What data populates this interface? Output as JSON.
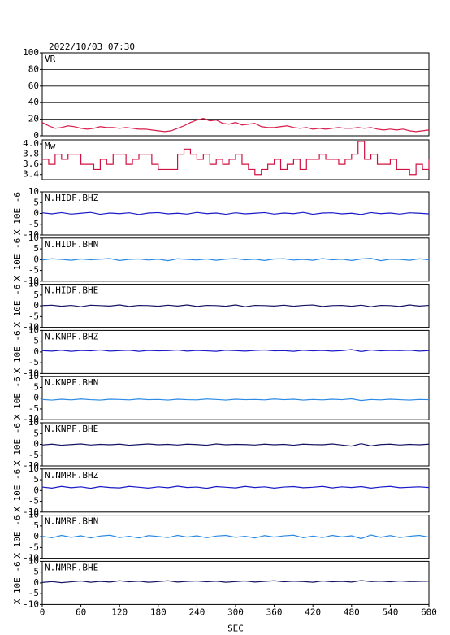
{
  "chart_data": [
    {
      "type": "line",
      "title": "2022/10/03 07:30",
      "label": "VR",
      "color": "#d81b4a",
      "grid": true,
      "x": [
        0,
        10,
        20,
        30,
        40,
        50,
        60,
        70,
        80,
        90,
        100,
        110,
        120,
        130,
        140,
        150,
        160,
        170,
        180,
        190,
        200,
        210,
        220,
        230,
        240,
        250,
        260,
        270,
        280,
        290,
        300,
        310,
        320,
        330,
        340,
        350,
        360,
        370,
        380,
        390,
        400,
        410,
        420,
        430,
        440,
        450,
        460,
        470,
        480,
        490,
        500,
        510,
        520,
        530,
        540,
        550,
        560,
        570,
        580,
        590,
        600
      ],
      "values": [
        16,
        12,
        9,
        10,
        12,
        11,
        9,
        8,
        9,
        11,
        10,
        10,
        9,
        10,
        9,
        8,
        8,
        7,
        6,
        5,
        6,
        9,
        12,
        16,
        19,
        21,
        18,
        19,
        15,
        14,
        16,
        13,
        14,
        15,
        11,
        10,
        10,
        11,
        12,
        10,
        9,
        10,
        8,
        9,
        8,
        9,
        10,
        9,
        9,
        10,
        9,
        10,
        8,
        7,
        8,
        7,
        8,
        6,
        5,
        6,
        7
      ],
      "xlim": [
        0,
        600
      ],
      "ylim": [
        0,
        100
      ],
      "yticks": [
        0,
        20,
        40,
        60,
        80,
        100
      ]
    },
    {
      "type": "step",
      "label": "Mw",
      "color": "#d01040",
      "x": [
        0,
        10,
        20,
        30,
        40,
        50,
        60,
        70,
        80,
        90,
        100,
        110,
        120,
        130,
        140,
        150,
        160,
        170,
        180,
        190,
        200,
        210,
        220,
        230,
        240,
        250,
        260,
        270,
        280,
        290,
        300,
        310,
        320,
        330,
        340,
        350,
        360,
        370,
        380,
        390,
        400,
        410,
        420,
        430,
        440,
        450,
        460,
        470,
        480,
        490,
        500,
        510,
        520,
        530,
        540,
        550,
        560,
        570,
        580,
        590,
        600
      ],
      "values": [
        3.7,
        3.6,
        3.8,
        3.7,
        3.8,
        3.8,
        3.6,
        3.6,
        3.5,
        3.7,
        3.6,
        3.8,
        3.8,
        3.6,
        3.7,
        3.8,
        3.8,
        3.6,
        3.5,
        3.5,
        3.5,
        3.8,
        3.9,
        3.8,
        3.7,
        3.8,
        3.6,
        3.7,
        3.6,
        3.7,
        3.8,
        3.6,
        3.5,
        3.4,
        3.5,
        3.6,
        3.7,
        3.5,
        3.6,
        3.7,
        3.5,
        3.7,
        3.7,
        3.8,
        3.7,
        3.7,
        3.6,
        3.7,
        3.8,
        4.05,
        3.7,
        3.8,
        3.6,
        3.6,
        3.7,
        3.5,
        3.5,
        3.4,
        3.6,
        3.5,
        3.7
      ],
      "xlim": [
        0,
        600
      ],
      "ylim": [
        3.3,
        4.08
      ],
      "yticks": [
        3.4,
        3.6,
        3.8,
        {
          "value": 4,
          "label": "4.0"
        }
      ]
    },
    {
      "type": "line",
      "label": "N.HIDF.BHZ",
      "ylabel": "X 10E -6",
      "color": "#1a1ac8",
      "x": [
        0,
        15,
        30,
        45,
        60,
        75,
        90,
        105,
        120,
        135,
        150,
        165,
        180,
        195,
        210,
        225,
        240,
        255,
        270,
        285,
        300,
        315,
        330,
        345,
        360,
        375,
        390,
        405,
        420,
        435,
        450,
        465,
        480,
        495,
        510,
        525,
        540,
        555,
        570,
        585,
        600
      ],
      "values": [
        0.3,
        -0.2,
        0.4,
        -0.3,
        0.1,
        0.5,
        -0.4,
        0.2,
        -0.1,
        0.3,
        -0.5,
        0.2,
        0.4,
        -0.2,
        0.1,
        -0.3,
        0.5,
        -0.1,
        0.2,
        -0.4,
        0.3,
        -0.2,
        0.1,
        0.4,
        -0.3,
        0.2,
        -0.1,
        0.5,
        -0.4,
        0.2,
        0.3,
        -0.2,
        0.1,
        -0.5,
        0.4,
        -0.1,
        0.2,
        -0.3,
        0.3,
        0.1,
        -0.2
      ],
      "xlim": [
        0,
        600
      ],
      "ylim": [
        -10,
        10
      ],
      "yticks": [
        -10,
        -5,
        0,
        5,
        10
      ]
    },
    {
      "type": "line",
      "label": "N.HIDF.BHN",
      "ylabel": "X 10E -6",
      "color": "#2a8ae6",
      "x": [
        0,
        15,
        30,
        45,
        60,
        75,
        90,
        105,
        120,
        135,
        150,
        165,
        180,
        195,
        210,
        225,
        240,
        255,
        270,
        285,
        300,
        315,
        330,
        345,
        360,
        375,
        390,
        405,
        420,
        435,
        450,
        465,
        480,
        495,
        510,
        525,
        540,
        555,
        570,
        585,
        600
      ],
      "values": [
        -0.2,
        0.4,
        0.1,
        -0.3,
        0.3,
        -0.1,
        0.2,
        0.5,
        -0.4,
        0.1,
        0.3,
        -0.2,
        0.2,
        -0.5,
        0.4,
        0.1,
        -0.2,
        0.3,
        -0.3,
        0.2,
        0.5,
        -0.1,
        0.2,
        -0.4,
        0.3,
        0.4,
        -0.2,
        0.1,
        -0.3,
        0.5,
        -0.1,
        0.2,
        -0.4,
        0.3,
        0.6,
        -0.5,
        0.2,
        0.1,
        -0.3,
        0.4,
        -0.1
      ],
      "xlim": [
        0,
        600
      ],
      "ylim": [
        -10,
        10
      ],
      "yticks": [
        -10,
        -5,
        0,
        5,
        10
      ]
    },
    {
      "type": "line",
      "label": "N.HIDF.BHE",
      "ylabel": "X 10E -6",
      "color": "#141464",
      "x": [
        0,
        15,
        30,
        45,
        60,
        75,
        90,
        105,
        120,
        135,
        150,
        165,
        180,
        195,
        210,
        225,
        240,
        255,
        270,
        285,
        300,
        315,
        330,
        345,
        360,
        375,
        390,
        405,
        420,
        435,
        450,
        465,
        480,
        495,
        510,
        525,
        540,
        555,
        570,
        585,
        600
      ],
      "values": [
        0.1,
        0.3,
        -0.2,
        0.2,
        -0.4,
        0.3,
        0.1,
        -0.1,
        0.4,
        -0.3,
        0.2,
        0.1,
        -0.2,
        0.3,
        -0.1,
        0.4,
        -0.3,
        0.2,
        0.1,
        -0.2,
        0.4,
        -0.4,
        0.2,
        0.1,
        -0.1,
        0.3,
        -0.2,
        0.2,
        0.4,
        -0.3,
        0.1,
        0.2,
        -0.2,
        0.3,
        -0.4,
        0.2,
        0.1,
        -0.3,
        0.4,
        -0.1,
        0.2
      ],
      "xlim": [
        0,
        600
      ],
      "ylim": [
        -10,
        10
      ],
      "yticks": [
        -10,
        -5,
        0,
        5,
        10
      ]
    },
    {
      "type": "line",
      "label": "N.KNPF.BHZ",
      "ylabel": "X 10E -6",
      "color": "#1a1ac8",
      "x": [
        0,
        15,
        30,
        45,
        60,
        75,
        90,
        105,
        120,
        135,
        150,
        165,
        180,
        195,
        210,
        225,
        240,
        255,
        270,
        285,
        300,
        315,
        330,
        345,
        360,
        375,
        390,
        405,
        420,
        435,
        450,
        465,
        480,
        495,
        510,
        525,
        540,
        555,
        570,
        585,
        600
      ],
      "values": [
        0.6,
        0.4,
        0.8,
        0.3,
        0.7,
        0.5,
        0.9,
        0.4,
        0.6,
        0.8,
        0.3,
        0.7,
        0.5,
        0.6,
        0.9,
        0.4,
        0.7,
        0.5,
        0.3,
        0.8,
        0.6,
        0.4,
        0.7,
        0.9,
        0.5,
        0.6,
        0.3,
        0.8,
        0.5,
        0.7,
        0.4,
        0.6,
        1.1,
        0.2,
        0.9,
        0.5,
        0.7,
        0.6,
        0.8,
        0.4,
        0.6
      ],
      "xlim": [
        0,
        600
      ],
      "ylim": [
        -10,
        10
      ],
      "yticks": [
        -10,
        -5,
        0,
        5,
        10
      ]
    },
    {
      "type": "line",
      "label": "N.KNPF.BHN",
      "ylabel": "X 10E -6",
      "color": "#2a8ae6",
      "x": [
        0,
        15,
        30,
        45,
        60,
        75,
        90,
        105,
        120,
        135,
        150,
        165,
        180,
        195,
        210,
        225,
        240,
        255,
        270,
        285,
        300,
        315,
        330,
        345,
        360,
        375,
        390,
        405,
        420,
        435,
        450,
        465,
        480,
        495,
        510,
        525,
        540,
        555,
        570,
        585,
        600
      ],
      "values": [
        -0.6,
        -0.9,
        -0.5,
        -0.8,
        -0.4,
        -0.7,
        -0.9,
        -0.5,
        -0.6,
        -0.8,
        -0.4,
        -0.7,
        -0.6,
        -0.9,
        -0.5,
        -0.7,
        -0.8,
        -0.4,
        -0.6,
        -0.9,
        -0.5,
        -0.7,
        -0.6,
        -0.8,
        -0.4,
        -0.7,
        -0.5,
        -0.9,
        -0.6,
        -0.8,
        -0.5,
        -0.7,
        -0.3,
        -1.1,
        -0.6,
        -0.8,
        -0.5,
        -0.7,
        -0.9,
        -0.6,
        -0.7
      ],
      "xlim": [
        0,
        600
      ],
      "ylim": [
        -10,
        10
      ],
      "yticks": [
        -10,
        -5,
        0,
        5,
        10
      ]
    },
    {
      "type": "line",
      "label": "N.KNPF.BHE",
      "ylabel": "X 10E -6",
      "color": "#141464",
      "x": [
        0,
        15,
        30,
        45,
        60,
        75,
        90,
        105,
        120,
        135,
        150,
        165,
        180,
        195,
        210,
        225,
        240,
        255,
        270,
        285,
        300,
        315,
        330,
        345,
        360,
        375,
        390,
        405,
        420,
        435,
        450,
        465,
        480,
        495,
        510,
        525,
        540,
        555,
        570,
        585,
        600
      ],
      "values": [
        -0.3,
        0.1,
        -0.4,
        -0.1,
        0.2,
        -0.3,
        0,
        -0.2,
        0.1,
        -0.4,
        -0.1,
        0.2,
        -0.2,
        0,
        -0.3,
        0.1,
        -0.1,
        -0.4,
        0.2,
        -0.2,
        0,
        -0.1,
        -0.3,
        0.1,
        -0.2,
        0,
        -0.4,
        0.1,
        -0.1,
        -0.2,
        0.2,
        -0.3,
        -0.8,
        0.3,
        -0.7,
        -0.1,
        0.1,
        -0.3,
        0,
        -0.2,
        0.1
      ],
      "xlim": [
        0,
        600
      ],
      "ylim": [
        -10,
        10
      ],
      "yticks": [
        -10,
        -5,
        0,
        5,
        10
      ]
    },
    {
      "type": "line",
      "label": "N.NMRF.BHZ",
      "ylabel": "X 10E -6",
      "color": "#1a1ac8",
      "x": [
        0,
        15,
        30,
        45,
        60,
        75,
        90,
        105,
        120,
        135,
        150,
        165,
        180,
        195,
        210,
        225,
        240,
        255,
        270,
        285,
        300,
        315,
        330,
        345,
        360,
        375,
        390,
        405,
        420,
        435,
        450,
        465,
        480,
        495,
        510,
        525,
        540,
        555,
        570,
        585,
        600
      ],
      "values": [
        1.6,
        1.1,
        1.9,
        1.3,
        1.7,
        1.0,
        1.8,
        1.4,
        1.2,
        1.9,
        1.5,
        1.1,
        1.7,
        1.3,
        2.0,
        1.4,
        1.6,
        1.0,
        1.8,
        1.5,
        1.2,
        1.9,
        1.4,
        1.7,
        1.1,
        1.6,
        1.8,
        1.3,
        1.5,
        1.9,
        1.2,
        1.7,
        1.4,
        1.8,
        1.1,
        1.6,
        1.9,
        1.3,
        1.5,
        1.7,
        1.4
      ],
      "xlim": [
        0,
        600
      ],
      "ylim": [
        -10,
        10
      ],
      "yticks": [
        -10,
        -5,
        0,
        5,
        10
      ]
    },
    {
      "type": "line",
      "label": "N.NMRF.BHN",
      "ylabel": "X 10E -6",
      "color": "#2a8ae6",
      "x": [
        0,
        15,
        30,
        45,
        60,
        75,
        90,
        105,
        120,
        135,
        150,
        165,
        180,
        195,
        210,
        225,
        240,
        255,
        270,
        285,
        300,
        315,
        330,
        345,
        360,
        375,
        390,
        405,
        420,
        435,
        450,
        465,
        480,
        495,
        510,
        525,
        540,
        555,
        570,
        585,
        600
      ],
      "values": [
        0.2,
        -0.5,
        0.6,
        -0.3,
        0.4,
        -0.6,
        0.3,
        0.7,
        -0.4,
        0.2,
        -0.6,
        0.5,
        0.1,
        -0.4,
        0.6,
        -0.2,
        0.4,
        -0.5,
        0.3,
        0.6,
        -0.3,
        0.2,
        -0.6,
        0.5,
        -0.2,
        0.4,
        0.7,
        -0.5,
        0.3,
        -0.4,
        0.6,
        -0.1,
        0.4,
        -0.9,
        0.8,
        -0.3,
        0.5,
        -0.4,
        0.2,
        0.6,
        -0.2
      ],
      "xlim": [
        0,
        600
      ],
      "ylim": [
        -10,
        10
      ],
      "yticks": [
        -10,
        -5,
        0,
        5,
        10
      ]
    },
    {
      "type": "line",
      "label": "N.NMRF.BHE",
      "ylabel": "X 10E -6",
      "color": "#141464",
      "x": [
        0,
        15,
        30,
        45,
        60,
        75,
        90,
        105,
        120,
        135,
        150,
        165,
        180,
        195,
        210,
        225,
        240,
        255,
        270,
        285,
        300,
        315,
        330,
        345,
        360,
        375,
        390,
        405,
        420,
        435,
        450,
        465,
        480,
        495,
        510,
        525,
        540,
        555,
        570,
        585,
        600
      ],
      "values": [
        0.2,
        0.6,
        0.1,
        0.5,
        0.9,
        0.3,
        0.7,
        0.4,
        1.0,
        0.5,
        0.8,
        0.3,
        0.6,
        1.0,
        0.4,
        0.7,
        0.9,
        0.5,
        0.8,
        0.3,
        0.6,
        0.9,
        0.4,
        0.7,
        1.0,
        0.5,
        0.8,
        0.6,
        0.3,
        0.9,
        0.5,
        0.7,
        0.4,
        1.1,
        0.6,
        0.8,
        0.5,
        0.9,
        0.6,
        0.7,
        0.8
      ],
      "xlim": [
        0,
        600
      ],
      "ylim": [
        -10,
        10
      ],
      "yticks": [
        -10,
        -5,
        0,
        5,
        10
      ],
      "xticks": [
        0,
        60,
        120,
        180,
        240,
        300,
        360,
        420,
        480,
        540,
        600
      ],
      "xlabel": "SEC"
    }
  ]
}
